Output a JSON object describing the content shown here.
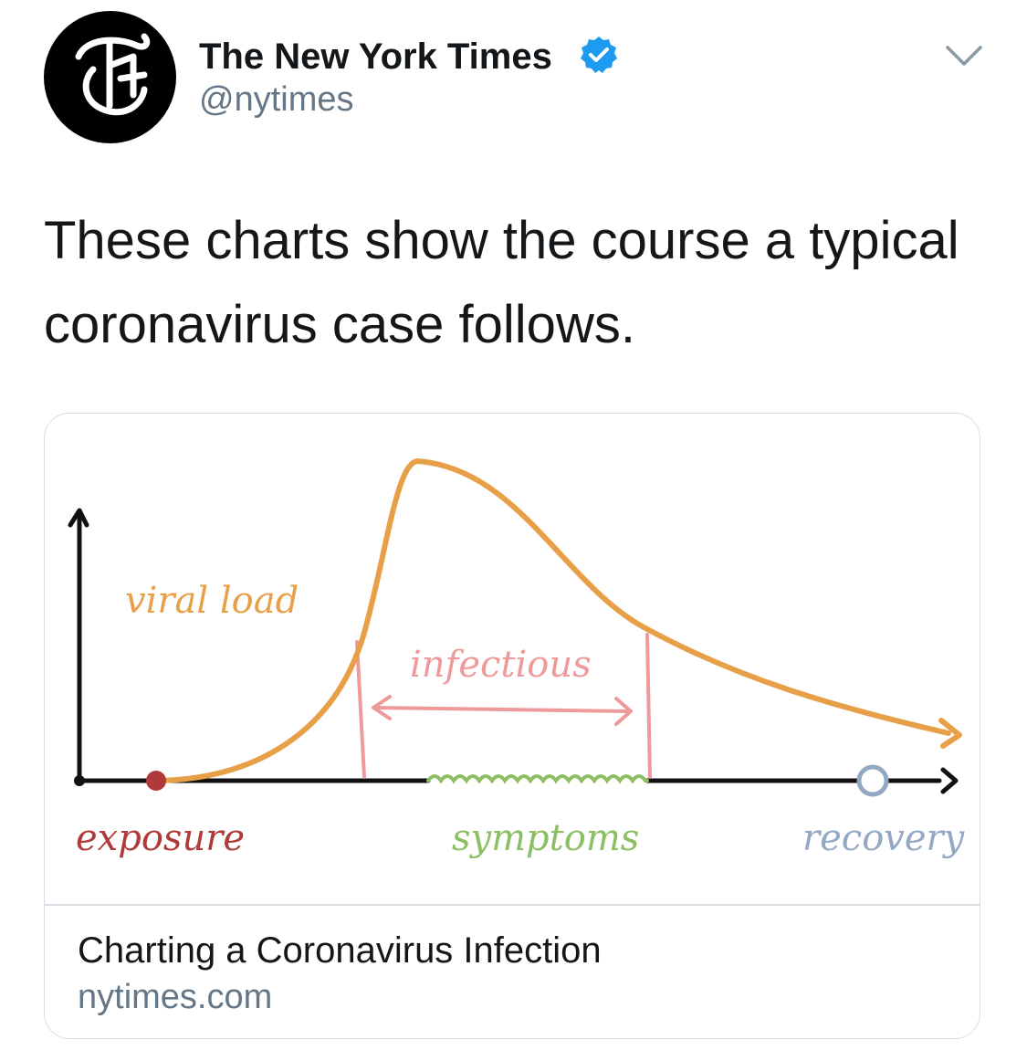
{
  "tweet": {
    "author_name": "The New York Times",
    "author_handle": "@nytimes",
    "text": "These charts show the course a typical coronavirus case follows.",
    "icons": {
      "avatar": "nyt-logo-icon",
      "verified": "verified-badge-icon",
      "menu": "chevron-down-icon"
    }
  },
  "card": {
    "title": "Charting a Coronavirus Infection",
    "domain": "nytimes.com",
    "illustration": {
      "labels": {
        "viral_load": "viral load",
        "infectious": "infectious",
        "exposure": "exposure",
        "symptoms": "symptoms",
        "recovery": "recovery"
      }
    }
  },
  "colors": {
    "viral_load": "#e8a048",
    "infectious": "#ef9a9a",
    "exposure": "#b03a3a",
    "symptoms": "#8cbf63",
    "recovery": "#93a8c2",
    "verified": "#1d9bf0",
    "axis": "#111111"
  }
}
